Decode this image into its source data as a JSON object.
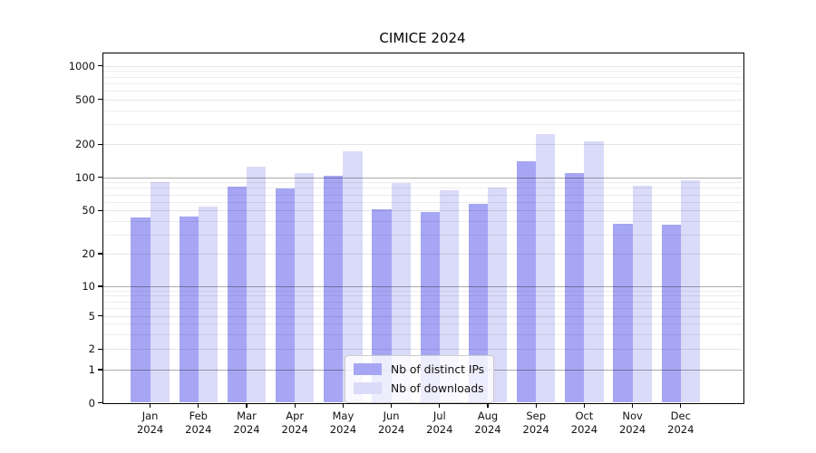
{
  "title": "CIMICE 2024",
  "legend": {
    "items": [
      {
        "label": "Nb of distinct IPs",
        "key": "distinct-ips",
        "color": "#a6a6f4"
      },
      {
        "label": "Nb of downloads",
        "key": "downloads",
        "color": "#dadaf9"
      }
    ]
  },
  "y_axis": {
    "tick_labels": [
      "0",
      "1",
      "2",
      "5",
      "10",
      "20",
      "50",
      "100",
      "200",
      "500",
      "1000"
    ]
  },
  "x_axis": {
    "months": [
      "Jan",
      "Feb",
      "Mar",
      "Apr",
      "May",
      "Jun",
      "Jul",
      "Aug",
      "Sep",
      "Oct",
      "Nov",
      "Dec"
    ],
    "year": "2024"
  },
  "chart_data": {
    "type": "bar",
    "title": "CIMICE 2024",
    "categories": [
      "Jan 2024",
      "Feb 2024",
      "Mar 2024",
      "Apr 2024",
      "May 2024",
      "Jun 2024",
      "Jul 2024",
      "Aug 2024",
      "Sep 2024",
      "Oct 2024",
      "Nov 2024",
      "Dec 2024"
    ],
    "series": [
      {
        "name": "Nb of distinct IPs",
        "color": "#a6a6f4",
        "values": [
          43,
          44,
          82,
          79,
          104,
          51,
          48,
          57,
          140,
          109,
          38,
          37
        ]
      },
      {
        "name": "Nb of downloads",
        "color": "#dadaf9",
        "values": [
          90,
          54,
          125,
          110,
          174,
          88,
          77,
          80,
          245,
          214,
          84,
          94
        ]
      }
    ],
    "yscale": "log-like with ticks 0,1,2,5,10,20,50,100,200,500,1000",
    "yticks": [
      0,
      1,
      2,
      5,
      10,
      20,
      50,
      100,
      200,
      500,
      1000
    ],
    "minor_gridlines": [
      3,
      4,
      6,
      7,
      8,
      9,
      30,
      40,
      60,
      70,
      80,
      90,
      300,
      400,
      600,
      700,
      800,
      900
    ],
    "major_gridlines": [
      1,
      10,
      100
    ],
    "ylim": [
      0,
      1100
    ],
    "grid": true,
    "legend_position": "lower center"
  }
}
